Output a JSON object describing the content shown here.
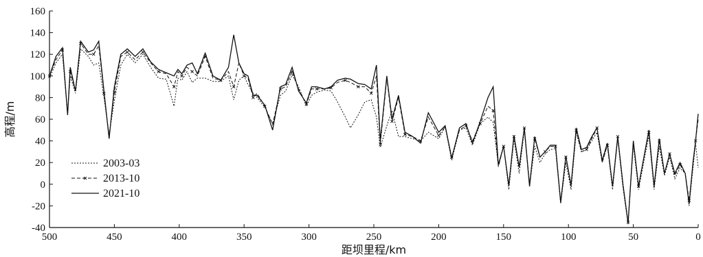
{
  "chart_data": {
    "type": "line",
    "xlabel": "距坝里程/km",
    "ylabel": "高程/m",
    "xlim": [
      500,
      0
    ],
    "ylim": [
      -40,
      160
    ],
    "x_reversed": true,
    "x_ticks": [
      500,
      450,
      400,
      350,
      300,
      250,
      200,
      150,
      100,
      50,
      0
    ],
    "y_ticks": [
      -40,
      -20,
      0,
      20,
      40,
      60,
      80,
      100,
      120,
      140,
      160
    ],
    "grid": false,
    "legend_position": "lower-left",
    "series": [
      {
        "name": "2003-03",
        "style": "dotted",
        "x": [
          500,
          495,
          490,
          486,
          484,
          480,
          476,
          470,
          466,
          462,
          458,
          454,
          450,
          445,
          440,
          434,
          428,
          422,
          416,
          410,
          404,
          401,
          398,
          394,
          390,
          386,
          380,
          374,
          368,
          362,
          358,
          354,
          350,
          347,
          343,
          340,
          334,
          328,
          322,
          318,
          313,
          308,
          302,
          298,
          294,
          288,
          283,
          278,
          272,
          268,
          262,
          257,
          252,
          248,
          245,
          240,
          236,
          231,
          226,
          220,
          214,
          208,
          200,
          195,
          190,
          184,
          179,
          174,
          168,
          162,
          158,
          154,
          150,
          146,
          142,
          138,
          134,
          130,
          126,
          122,
          118,
          114,
          110,
          106,
          102,
          98,
          94,
          90,
          86,
          82,
          78,
          74,
          70,
          66,
          62,
          58,
          54,
          50,
          46,
          42,
          38,
          34,
          30,
          26,
          22,
          18,
          14,
          10,
          7,
          4,
          2,
          0
        ],
        "values": [
          98,
          112,
          120,
          65,
          100,
          84,
          125,
          118,
          110,
          112,
          80,
          46,
          77,
          110,
          120,
          112,
          120,
          108,
          98,
          97,
          72,
          98,
          96,
          104,
          94,
          98,
          98,
          95,
          95,
          100,
          78,
          96,
          100,
          92,
          84,
          80,
          71,
          56,
          82,
          86,
          101,
          90,
          72,
          82,
          85,
          87,
          86,
          76,
          62,
          52,
          64,
          76,
          78,
          62,
          34,
          54,
          68,
          44,
          44,
          42,
          40,
          48,
          42,
          53,
          22,
          50,
          52,
          36,
          56,
          62,
          57,
          17,
          35,
          -5,
          42,
          10,
          50,
          -2,
          35,
          20,
          28,
          32,
          33,
          -18,
          20,
          -5,
          48,
          30,
          32,
          40,
          48,
          20,
          36,
          -5,
          42,
          -3,
          -37,
          36,
          -5,
          20,
          45,
          -5,
          35,
          8,
          25,
          5,
          15,
          10,
          -20,
          15,
          38,
          15
        ]
      },
      {
        "name": "2013-10",
        "style": "dashed-marker",
        "x": [
          500,
          495,
          490,
          486,
          484,
          480,
          476,
          470,
          466,
          462,
          458,
          454,
          450,
          445,
          440,
          434,
          428,
          422,
          416,
          410,
          404,
          401,
          398,
          394,
          390,
          386,
          380,
          374,
          368,
          362,
          358,
          354,
          350,
          347,
          343,
          340,
          334,
          328,
          322,
          318,
          313,
          308,
          302,
          298,
          294,
          288,
          283,
          278,
          272,
          268,
          262,
          257,
          252,
          248,
          245,
          240,
          236,
          231,
          226,
          220,
          214,
          208,
          200,
          195,
          190,
          184,
          179,
          174,
          168,
          162,
          158,
          154,
          150,
          146,
          142,
          138,
          134,
          130,
          126,
          122,
          118,
          114,
          110,
          106,
          102,
          98,
          94,
          90,
          86,
          82,
          78,
          74,
          70,
          66,
          62,
          58,
          54,
          50,
          46,
          42,
          38,
          34,
          30,
          26,
          22,
          18,
          14,
          10,
          7,
          4,
          2,
          0
        ],
        "values": [
          100,
          115,
          124,
          64,
          104,
          86,
          130,
          120,
          120,
          128,
          84,
          44,
          85,
          118,
          122,
          115,
          122,
          112,
          104,
          102,
          90,
          104,
          100,
          108,
          104,
          100,
          118,
          98,
          96,
          104,
          90,
          112,
          100,
          98,
          80,
          84,
          72,
          55,
          88,
          90,
          104,
          88,
          74,
          88,
          88,
          88,
          89,
          94,
          96,
          94,
          90,
          90,
          84,
          100,
          37,
          98,
          58,
          80,
          46,
          44,
          40,
          62,
          45,
          53,
          25,
          50,
          54,
          40,
          56,
          72,
          68,
          16,
          35,
          -2,
          44,
          15,
          52,
          0,
          42,
          25,
          30,
          35,
          35,
          -16,
          25,
          -2,
          50,
          30,
          32,
          42,
          52,
          20,
          36,
          -2,
          44,
          0,
          -35,
          40,
          -2,
          24,
          48,
          -2,
          40,
          10,
          28,
          8,
          18,
          10,
          -15,
          18,
          40,
          60
        ]
      },
      {
        "name": "2021-10",
        "style": "solid",
        "x": [
          500,
          495,
          490,
          486,
          484,
          480,
          476,
          470,
          466,
          462,
          458,
          454,
          450,
          445,
          440,
          434,
          428,
          422,
          416,
          410,
          404,
          401,
          398,
          394,
          390,
          386,
          380,
          374,
          368,
          362,
          358,
          354,
          350,
          347,
          343,
          340,
          334,
          328,
          322,
          318,
          313,
          308,
          302,
          298,
          294,
          288,
          283,
          278,
          272,
          268,
          262,
          257,
          252,
          248,
          245,
          240,
          236,
          231,
          226,
          220,
          214,
          208,
          200,
          195,
          190,
          184,
          179,
          174,
          168,
          162,
          158,
          154,
          150,
          146,
          142,
          138,
          134,
          130,
          126,
          122,
          118,
          114,
          110,
          106,
          102,
          98,
          94,
          90,
          86,
          82,
          78,
          74,
          70,
          66,
          62,
          58,
          54,
          50,
          46,
          42,
          38,
          34,
          30,
          26,
          22,
          18,
          14,
          10,
          7,
          4,
          2,
          0
        ],
        "values": [
          100,
          118,
          126,
          64,
          108,
          86,
          132,
          122,
          124,
          132,
          86,
          42,
          90,
          120,
          125,
          118,
          125,
          113,
          106,
          103,
          100,
          106,
          102,
          110,
          112,
          102,
          121,
          100,
          96,
          108,
          138,
          112,
          102,
          100,
          82,
          82,
          73,
          50,
          90,
          92,
          108,
          86,
          75,
          90,
          90,
          88,
          90,
          96,
          98,
          97,
          93,
          92,
          88,
          110,
          40,
          100,
          60,
          82,
          48,
          44,
          38,
          66,
          48,
          54,
          24,
          52,
          56,
          38,
          58,
          80,
          90,
          18,
          35,
          -1,
          45,
          16,
          52,
          -2,
          44,
          25,
          30,
          36,
          36,
          -17,
          26,
          -1,
          52,
          32,
          34,
          44,
          52,
          22,
          38,
          -2,
          44,
          0,
          -36,
          40,
          -2,
          24,
          50,
          -2,
          42,
          10,
          28,
          10,
          20,
          10,
          -18,
          20,
          40,
          65
        ]
      }
    ]
  }
}
